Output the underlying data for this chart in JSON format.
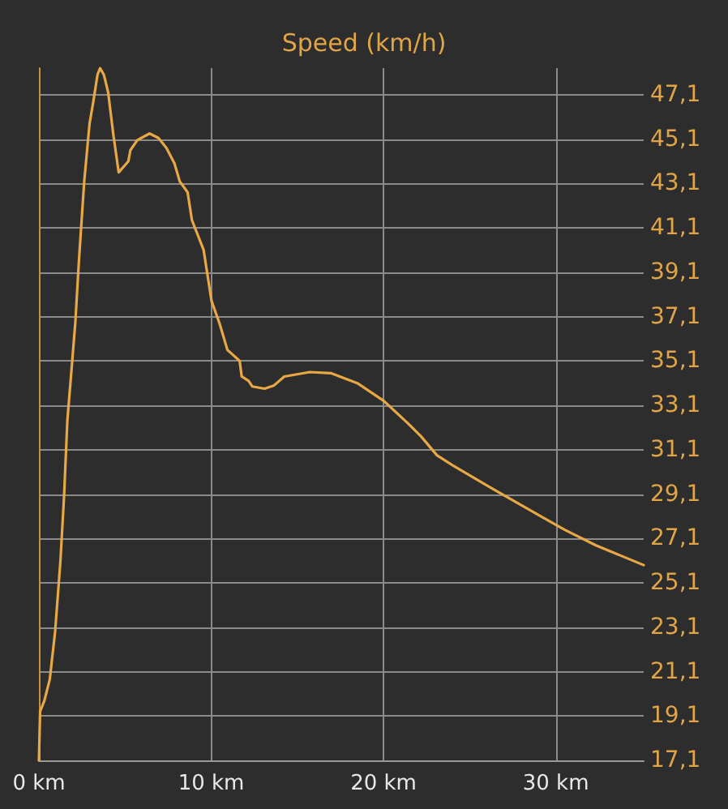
{
  "chart_data": {
    "type": "line",
    "title": "Speed (km/h)",
    "x": [
      0,
      0.07,
      0.32,
      0.63,
      0.94,
      1.25,
      1.46,
      1.65,
      1.86,
      2.11,
      2.33,
      2.63,
      2.94,
      3.16,
      3.4,
      3.55,
      3.77,
      4.02,
      4.32,
      4.63,
      5.19,
      5.31,
      5.71,
      6.42,
      6.94,
      7.4,
      7.87,
      8.17,
      8.63,
      8.88,
      9.56,
      10.02,
      10.48,
      10.94,
      11.65,
      11.77,
      12.17,
      12.39,
      13.09,
      13.65,
      14.24,
      15.72,
      16.94,
      18.48,
      20.02,
      21.4,
      22.18,
      23.1,
      24.0,
      26.2,
      29.25,
      30.5,
      32.3,
      35.1
    ],
    "series": [
      {
        "color": "#e8a845",
        "values": [
          17.1,
          19.3,
          19.8,
          20.75,
          22.9,
          26.1,
          29.0,
          32.4,
          34.4,
          36.8,
          39.7,
          43.2,
          45.8,
          46.8,
          48.0,
          48.3,
          48.0,
          47.2,
          45.3,
          43.6,
          44.1,
          44.6,
          45.05,
          45.35,
          45.15,
          44.7,
          44.0,
          43.2,
          42.7,
          41.45,
          40.1,
          37.8,
          36.8,
          35.6,
          35.1,
          34.4,
          34.2,
          33.95,
          33.85,
          34.0,
          34.4,
          34.6,
          34.55,
          34.1,
          33.3,
          32.3,
          31.7,
          30.85,
          30.4,
          29.4,
          28.05,
          27.5,
          26.8,
          25.9
        ]
      }
    ],
    "xlim": [
      0,
      35.1
    ],
    "xticks": [
      {
        "value": 0,
        "label": "0 km"
      },
      {
        "value": 10,
        "label": "10 km"
      },
      {
        "value": 20,
        "label": "20 km"
      },
      {
        "value": 30,
        "label": "30 km"
      }
    ],
    "ylim": [
      17.1,
      48.3
    ],
    "yticks": [
      {
        "value": 17.1,
        "label": "17,1"
      },
      {
        "value": 19.1,
        "label": "19,1"
      },
      {
        "value": 21.1,
        "label": "21,1"
      },
      {
        "value": 23.1,
        "label": "23,1"
      },
      {
        "value": 25.1,
        "label": "25,1"
      },
      {
        "value": 27.1,
        "label": "27,1"
      },
      {
        "value": 29.1,
        "label": "29,1"
      },
      {
        "value": 31.1,
        "label": "31,1"
      },
      {
        "value": 33.1,
        "label": "33,1"
      },
      {
        "value": 35.1,
        "label": "35,1"
      },
      {
        "value": 37.1,
        "label": "37,1"
      },
      {
        "value": 39.1,
        "label": "39,1"
      },
      {
        "value": 41.1,
        "label": "41,1"
      },
      {
        "value": 43.1,
        "label": "43,1"
      },
      {
        "value": 45.1,
        "label": "45,1"
      },
      {
        "value": 47.1,
        "label": "47,1"
      }
    ],
    "grid": true,
    "marker": "none",
    "line_style": "solid"
  }
}
